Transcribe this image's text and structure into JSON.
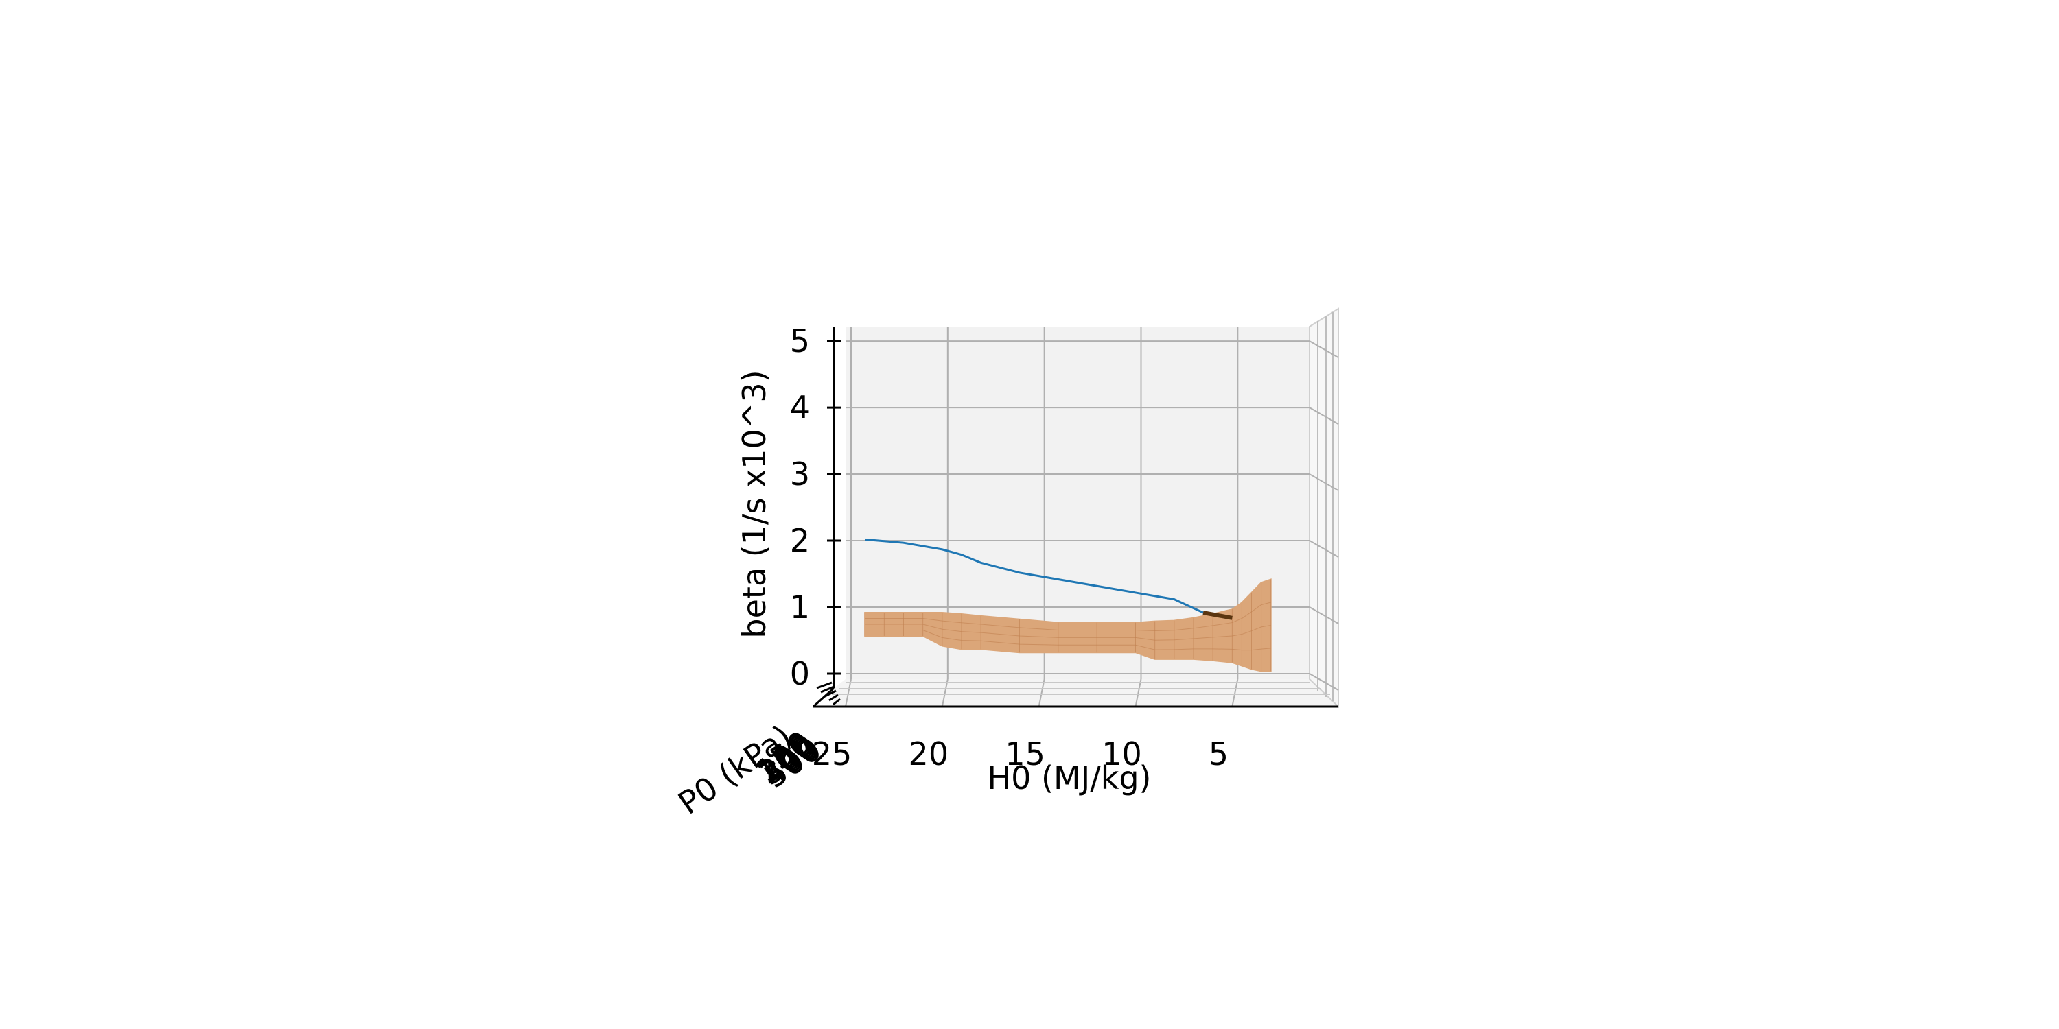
{
  "chart_data": {
    "type": "surface3d",
    "title": "",
    "xlabel": "H0 (MJ/kg)",
    "ylabel": "P0 (kPa)",
    "zlabel": "beta (1/s x10^3)",
    "xlim": [
      25,
      1
    ],
    "zlim": [
      0,
      5.3
    ],
    "x_ticks": [
      "25",
      "20",
      "15",
      "10",
      "5"
    ],
    "x_tick_values": [
      25,
      20,
      15,
      10,
      5
    ],
    "y_ticks": [
      "50",
      "100",
      "200",
      "300",
      "400",
      "500"
    ],
    "z_ticks": [
      "0",
      "1",
      "2",
      "3",
      "4",
      "5"
    ],
    "z_tick_values": [
      0,
      1,
      2,
      3,
      4,
      5
    ],
    "grid": true,
    "line_series": {
      "color": "#1f77b4",
      "x": [
        24,
        22,
        20,
        19,
        18,
        16,
        14,
        12,
        10,
        8,
        6.5
      ],
      "z": [
        2.1,
        2.05,
        1.95,
        1.87,
        1.75,
        1.6,
        1.5,
        1.4,
        1.3,
        1.2,
        1.0
      ]
    },
    "dark_segment": {
      "color": "#5a3510",
      "x": [
        6.5,
        5
      ],
      "z": [
        1.0,
        0.92
      ]
    },
    "surface": {
      "color": "#dba679",
      "edgecolor": "#c08050",
      "x": [
        24,
        23,
        22,
        21,
        20,
        19,
        18,
        16,
        14,
        12,
        10,
        9,
        8,
        7,
        6,
        5,
        4.5,
        4,
        3.5,
        3
      ],
      "z_top": [
        1.0,
        1.0,
        1.0,
        1.0,
        1.0,
        0.98,
        0.95,
        0.9,
        0.85,
        0.85,
        0.85,
        0.87,
        0.88,
        0.92,
        0.98,
        1.05,
        1.15,
        1.3,
        1.45,
        1.5
      ],
      "z_bottom": [
        0.65,
        0.65,
        0.65,
        0.65,
        0.5,
        0.45,
        0.45,
        0.4,
        0.4,
        0.4,
        0.4,
        0.3,
        0.3,
        0.3,
        0.28,
        0.25,
        0.2,
        0.15,
        0.12,
        0.12
      ]
    }
  }
}
